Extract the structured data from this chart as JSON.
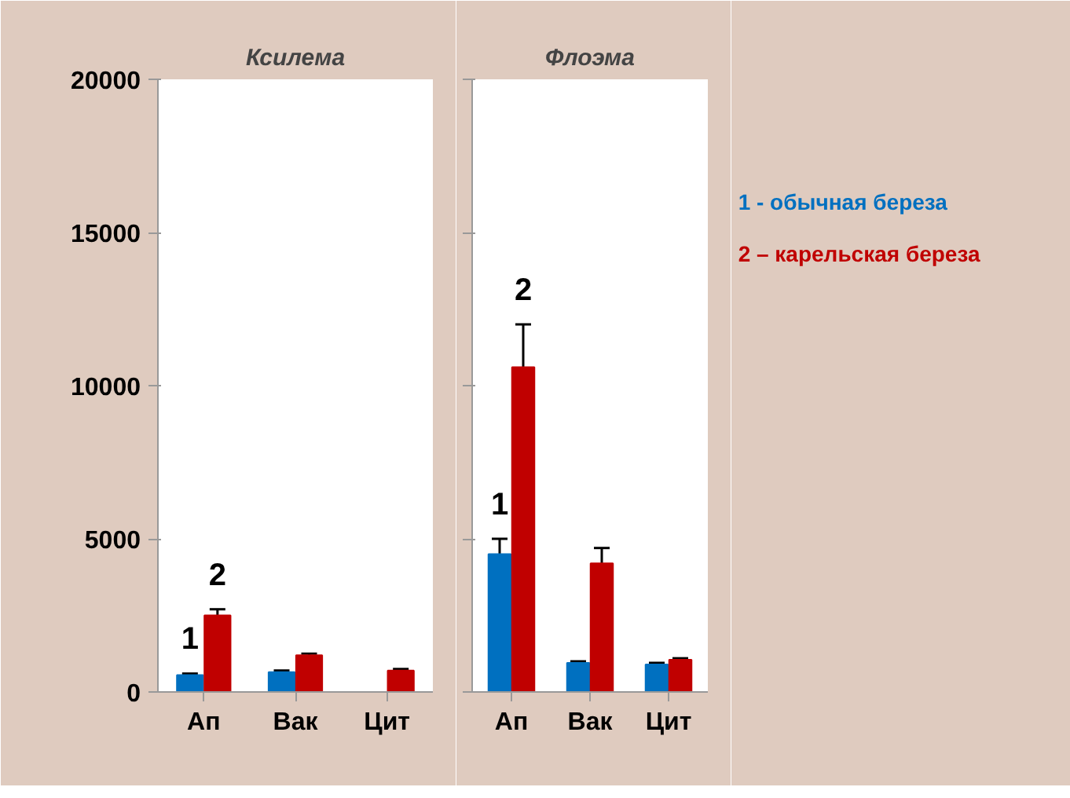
{
  "chart_data": [
    {
      "type": "bar",
      "title": "Ксилема",
      "categories": [
        "Ап",
        "Вак",
        "Цит"
      ],
      "ylim": [
        0,
        20000
      ],
      "yticks": [
        0,
        5000,
        10000,
        15000,
        20000
      ],
      "grid": false,
      "series": [
        {
          "color": "#0070c0",
          "values": [
            550,
            650,
            null
          ],
          "errors": [
            50,
            50,
            null
          ]
        },
        {
          "color": "#c00000",
          "values": [
            2500,
            1200,
            700
          ],
          "errors": [
            200,
            50,
            50
          ]
        }
      ],
      "annotations": [
        "1",
        "2"
      ]
    },
    {
      "type": "bar",
      "title": "Флоэма",
      "categories": [
        "Ап",
        "Вак",
        "Цит"
      ],
      "ylim": [
        0,
        20000
      ],
      "yticks": [
        0,
        5000,
        10000,
        15000,
        20000
      ],
      "grid": false,
      "tick_labels": "x",
      "series": [
        {
          "name": "1 - обычная береза",
          "color": "#0070c0",
          "values": [
            4500,
            950,
            900
          ],
          "errors": [
            500,
            50,
            50
          ]
        },
        {
          "name": "2 – карельская береза",
          "color": "#c00000",
          "values": [
            10600,
            4200,
            1050
          ],
          "errors": [
            1400,
            500,
            50
          ]
        }
      ],
      "annotations": [
        "1",
        "2"
      ]
    }
  ]
}
